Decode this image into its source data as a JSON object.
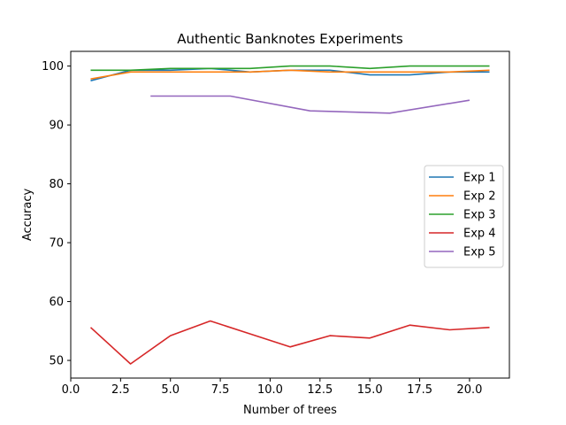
{
  "chart_data": {
    "type": "line",
    "title": "Authentic Banknotes Experiments",
    "xlabel": "Number of trees",
    "ylabel": "Accuracy",
    "xlim": [
      0.0,
      22.0
    ],
    "ylim": [
      47.0,
      102.5
    ],
    "xticks": [
      0.0,
      2.5,
      5.0,
      7.5,
      10.0,
      12.5,
      15.0,
      17.5,
      20.0
    ],
    "xtick_labels": [
      "0.0",
      "2.5",
      "5.0",
      "7.5",
      "10.0",
      "12.5",
      "15.0",
      "17.5",
      "20.0"
    ],
    "yticks": [
      50,
      60,
      70,
      80,
      90,
      100
    ],
    "ytick_labels": [
      "50",
      "60",
      "70",
      "80",
      "90",
      "100"
    ],
    "grid": false,
    "legend_position": "center-right",
    "series": [
      {
        "name": "Exp 1",
        "color": "#1f77b4",
        "x": [
          1,
          3,
          5,
          7,
          9,
          11,
          13,
          15,
          17,
          19,
          21
        ],
        "y": [
          97.5,
          99.3,
          99.3,
          99.6,
          99.0,
          99.3,
          99.3,
          98.5,
          98.5,
          99.0,
          99.0
        ]
      },
      {
        "name": "Exp 2",
        "color": "#ff7f0e",
        "x": [
          1,
          3,
          5,
          7,
          9,
          11,
          13,
          15,
          17,
          19,
          21
        ],
        "y": [
          97.8,
          99.0,
          99.0,
          99.0,
          99.0,
          99.3,
          99.0,
          99.0,
          99.0,
          99.0,
          99.3
        ]
      },
      {
        "name": "Exp 3",
        "color": "#2ca02c",
        "x": [
          1,
          3,
          5,
          7,
          9,
          11,
          13,
          15,
          17,
          19,
          21
        ],
        "y": [
          99.3,
          99.3,
          99.6,
          99.6,
          99.6,
          100.0,
          100.0,
          99.6,
          100.0,
          100.0,
          100.0
        ]
      },
      {
        "name": "Exp 4",
        "color": "#d62728",
        "x": [
          1,
          3,
          5,
          7,
          9,
          11,
          13,
          15,
          17,
          19,
          21
        ],
        "y": [
          55.6,
          49.4,
          54.2,
          56.7,
          54.5,
          52.3,
          54.2,
          53.8,
          56.0,
          55.2,
          55.6
        ]
      },
      {
        "name": "Exp 5",
        "color": "#9467bd",
        "x": [
          4,
          8,
          12,
          16,
          20
        ],
        "y": [
          94.9,
          94.9,
          92.4,
          92.0,
          94.2
        ]
      }
    ]
  }
}
